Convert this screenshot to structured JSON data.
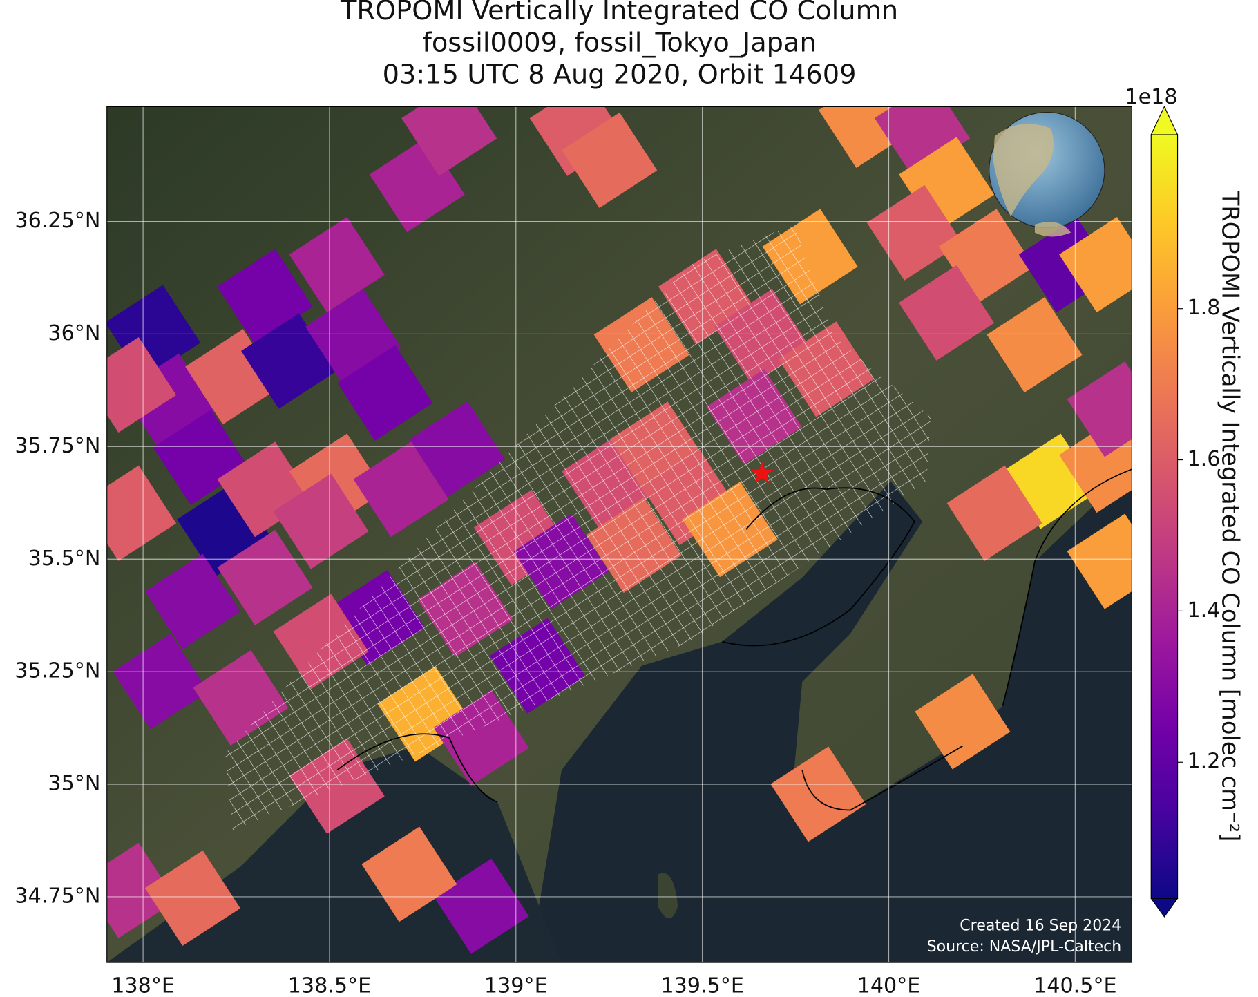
{
  "chart_data": {
    "type": "map",
    "title": [
      "TROPOMI Vertically Integrated CO Column",
      "fossil0009, fossil_Tokyo_Japan",
      "03:15 UTC 8 Aug 2020, Orbit 14609"
    ],
    "xlim": [
      137.903,
      140.652
    ],
    "ylim": [
      34.604,
      36.505
    ],
    "xticks": [
      {
        "value": 138,
        "label": "138°E"
      },
      {
        "value": 138.5,
        "label": "138.5°E"
      },
      {
        "value": 139,
        "label": "139°E"
      },
      {
        "value": 139.5,
        "label": "139.5°E"
      },
      {
        "value": 140,
        "label": "140°E"
      },
      {
        "value": 140.5,
        "label": "140.5°E"
      }
    ],
    "yticks": [
      {
        "value": 34.75,
        "label": "34.75°N"
      },
      {
        "value": 35,
        "label": "35°N"
      },
      {
        "value": 35.25,
        "label": "35.25°N"
      },
      {
        "value": 35.5,
        "label": "35.5°N"
      },
      {
        "value": 35.75,
        "label": "35.75°N"
      },
      {
        "value": 36,
        "label": "36°N"
      },
      {
        "value": 36.25,
        "label": "36.25°N"
      }
    ],
    "grid": true,
    "colorbar": {
      "label": "TROPOMI Vertically Integrated CO Column [molec cm⁻²]",
      "offset_label": "1e18",
      "lim": [
        1.02,
        2.03
      ],
      "ticks": [
        1.2,
        1.4,
        1.6,
        1.8
      ],
      "colormap": [
        "#0d0887",
        "#46039f",
        "#7201a8",
        "#9c179e",
        "#bd3786",
        "#d8576b",
        "#ed7953",
        "#fb9f3a",
        "#fdca26",
        "#f0f921"
      ]
    },
    "site": {
      "lon": 139.66,
      "lat": 35.69,
      "color": "#ee1111"
    },
    "footer": [
      "Created 16 Sep 2024",
      "Source: NASA/JPL-Caltech"
    ],
    "tiles": [
      {
        "lon": 138.026,
        "lat": 36.003,
        "value": 1.08
      },
      {
        "lon": 138.069,
        "lat": 35.851,
        "value": 1.3
      },
      {
        "lon": 137.961,
        "lat": 35.887,
        "value": 1.55
      },
      {
        "lon": 138.241,
        "lat": 35.905,
        "value": 1.62
      },
      {
        "lon": 138.327,
        "lat": 36.083,
        "value": 1.25
      },
      {
        "lon": 138.391,
        "lat": 35.94,
        "value": 1.1
      },
      {
        "lon": 138.52,
        "lat": 36.154,
        "value": 1.4
      },
      {
        "lon": 138.563,
        "lat": 35.994,
        "value": 1.3
      },
      {
        "lon": 138.649,
        "lat": 35.869,
        "value": 1.25
      },
      {
        "lon": 138.735,
        "lat": 36.332,
        "value": 1.4
      },
      {
        "lon": 138.821,
        "lat": 36.457,
        "value": 1.45
      },
      {
        "lon": 138.155,
        "lat": 35.726,
        "value": 1.25
      },
      {
        "lon": 138.219,
        "lat": 35.566,
        "value": 1.05
      },
      {
        "lon": 138.327,
        "lat": 35.655,
        "value": 1.55
      },
      {
        "lon": 138.52,
        "lat": 35.673,
        "value": 1.65
      },
      {
        "lon": 137.961,
        "lat": 35.602,
        "value": 1.6
      },
      {
        "lon": 138.133,
        "lat": 35.406,
        "value": 1.3
      },
      {
        "lon": 138.327,
        "lat": 35.459,
        "value": 1.45
      },
      {
        "lon": 138.477,
        "lat": 35.584,
        "value": 1.5
      },
      {
        "lon": 138.692,
        "lat": 35.655,
        "value": 1.4
      },
      {
        "lon": 138.843,
        "lat": 35.744,
        "value": 1.3
      },
      {
        "lon": 138.628,
        "lat": 35.37,
        "value": 1.25
      },
      {
        "lon": 138.477,
        "lat": 35.317,
        "value": 1.55
      },
      {
        "lon": 138.047,
        "lat": 35.228,
        "value": 1.3
      },
      {
        "lon": 138.262,
        "lat": 35.192,
        "value": 1.45
      },
      {
        "lon": 138.757,
        "lat": 35.156,
        "value": 1.85
      },
      {
        "lon": 138.864,
        "lat": 35.388,
        "value": 1.45
      },
      {
        "lon": 139.015,
        "lat": 35.548,
        "value": 1.55
      },
      {
        "lon": 139.122,
        "lat": 35.495,
        "value": 1.3
      },
      {
        "lon": 139.251,
        "lat": 35.673,
        "value": 1.55
      },
      {
        "lon": 139.38,
        "lat": 35.744,
        "value": 1.62
      },
      {
        "lon": 139.316,
        "lat": 35.531,
        "value": 1.65
      },
      {
        "lon": 139.466,
        "lat": 35.637,
        "value": 1.6
      },
      {
        "lon": 139.574,
        "lat": 35.566,
        "value": 1.78
      },
      {
        "lon": 139.337,
        "lat": 35.976,
        "value": 1.7
      },
      {
        "lon": 139.51,
        "lat": 36.083,
        "value": 1.6
      },
      {
        "lon": 139.66,
        "lat": 35.994,
        "value": 1.55
      },
      {
        "lon": 139.789,
        "lat": 36.172,
        "value": 1.8
      },
      {
        "lon": 139.832,
        "lat": 35.922,
        "value": 1.6
      },
      {
        "lon": 139.639,
        "lat": 35.816,
        "value": 1.45
      },
      {
        "lon": 139.165,
        "lat": 36.457,
        "value": 1.6
      },
      {
        "lon": 139.251,
        "lat": 36.386,
        "value": 1.65
      },
      {
        "lon": 139.94,
        "lat": 36.475,
        "value": 1.75
      },
      {
        "lon": 140.09,
        "lat": 36.457,
        "value": 1.45
      },
      {
        "lon": 140.155,
        "lat": 36.332,
        "value": 1.8
      },
      {
        "lon": 140.069,
        "lat": 36.225,
        "value": 1.6
      },
      {
        "lon": 140.262,
        "lat": 36.172,
        "value": 1.7
      },
      {
        "lon": 140.155,
        "lat": 36.047,
        "value": 1.55
      },
      {
        "lon": 140.391,
        "lat": 35.976,
        "value": 1.75
      },
      {
        "lon": 140.434,
        "lat": 35.673,
        "value": 1.95
      },
      {
        "lon": 140.284,
        "lat": 35.602,
        "value": 1.65
      },
      {
        "lon": 140.585,
        "lat": 35.709,
        "value": 1.75
      },
      {
        "lon": 140.606,
        "lat": 35.495,
        "value": 1.8
      },
      {
        "lon": 140.606,
        "lat": 35.833,
        "value": 1.45
      },
      {
        "lon": 140.477,
        "lat": 36.154,
        "value": 1.2
      },
      {
        "lon": 140.585,
        "lat": 36.154,
        "value": 1.8
      },
      {
        "lon": 140.198,
        "lat": 35.139,
        "value": 1.75
      },
      {
        "lon": 139.811,
        "lat": 34.978,
        "value": 1.7
      },
      {
        "lon": 138.907,
        "lat": 34.729,
        "value": 1.3
      },
      {
        "lon": 138.714,
        "lat": 34.8,
        "value": 1.7
      },
      {
        "lon": 137.961,
        "lat": 34.764,
        "value": 1.45
      },
      {
        "lon": 138.133,
        "lat": 34.747,
        "value": 1.65
      },
      {
        "lon": 138.52,
        "lat": 34.996,
        "value": 1.55
      },
      {
        "lon": 138.907,
        "lat": 35.103,
        "value": 1.4
      },
      {
        "lon": 139.058,
        "lat": 35.263,
        "value": 1.25
      }
    ]
  }
}
